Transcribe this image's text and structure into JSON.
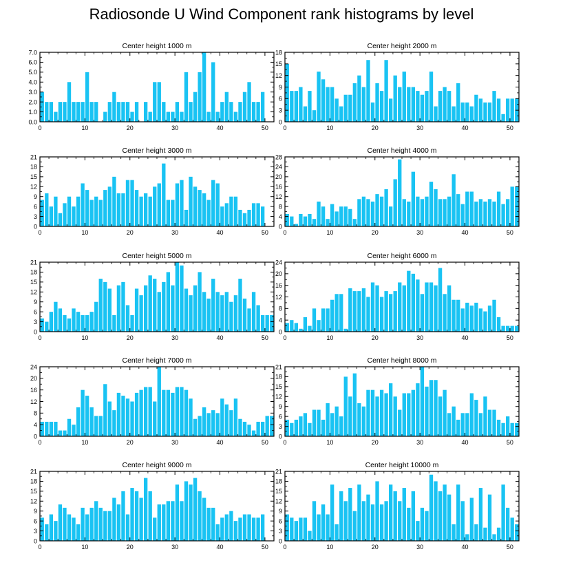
{
  "figure": {
    "title": "Radiosonde U Wind Component rank histograms by level",
    "bar_color": "#19c3f3",
    "axis_color": "#000000"
  },
  "chart_data": [
    {
      "type": "bar",
      "title": "Center height 1000 m",
      "xlabel": "",
      "ylabel": "",
      "xlim": [
        0,
        52
      ],
      "ylim": [
        0,
        7
      ],
      "yticks": [
        "0.0",
        "1.0",
        "2.0",
        "3.0",
        "4.0",
        "5.0",
        "6.0",
        "7.0"
      ],
      "ytick_values": [
        0,
        1,
        2,
        3,
        4,
        5,
        6,
        7
      ],
      "xticks": [
        0,
        10,
        20,
        30,
        40,
        50
      ],
      "x": [
        0,
        1,
        2,
        3,
        4,
        5,
        6,
        7,
        8,
        9,
        10,
        11,
        12,
        13,
        14,
        15,
        16,
        17,
        18,
        19,
        20,
        21,
        22,
        23,
        24,
        25,
        26,
        27,
        28,
        29,
        30,
        31,
        32,
        33,
        34,
        35,
        36,
        37,
        38,
        39,
        40,
        41,
        42,
        43,
        44,
        45,
        46,
        47,
        48,
        49,
        50,
        51
      ],
      "values": [
        3,
        2,
        2,
        1,
        2,
        2,
        4,
        2,
        2,
        2,
        5,
        2,
        2,
        0,
        1,
        2,
        3,
        2,
        2,
        2,
        1,
        2,
        0,
        2,
        1,
        4,
        4,
        2,
        1,
        1,
        2,
        1,
        5,
        2,
        3,
        5,
        7,
        1,
        6,
        1,
        2,
        3,
        2,
        1,
        2,
        3,
        4,
        2,
        2,
        3,
        0,
        0
      ]
    },
    {
      "type": "bar",
      "title": "Center height 2000 m",
      "xlabel": "",
      "ylabel": "",
      "xlim": [
        0,
        52
      ],
      "ylim": [
        0,
        18
      ],
      "yticks": [
        "0",
        "3",
        "6",
        "9",
        "12",
        "15",
        "18"
      ],
      "ytick_values": [
        0,
        3,
        6,
        9,
        12,
        15,
        18
      ],
      "xticks": [
        0,
        10,
        20,
        30,
        40,
        50
      ],
      "x": [
        0,
        1,
        2,
        3,
        4,
        5,
        6,
        7,
        8,
        9,
        10,
        11,
        12,
        13,
        14,
        15,
        16,
        17,
        18,
        19,
        20,
        21,
        22,
        23,
        24,
        25,
        26,
        27,
        28,
        29,
        30,
        31,
        32,
        33,
        34,
        35,
        36,
        37,
        38,
        39,
        40,
        41,
        42,
        43,
        44,
        45,
        46,
        47,
        48,
        49,
        50,
        51
      ],
      "values": [
        15,
        8,
        8,
        9,
        4,
        8,
        3,
        13,
        11,
        9,
        9,
        6,
        4,
        7,
        7,
        10,
        12,
        9,
        16,
        5,
        10,
        8,
        16,
        6,
        12,
        9,
        13,
        9,
        9,
        8,
        7,
        8,
        13,
        4,
        8,
        9,
        8,
        4,
        10,
        5,
        5,
        4,
        7,
        6,
        5,
        5,
        8,
        6,
        2,
        6,
        6,
        6
      ]
    },
    {
      "type": "bar",
      "title": "Center height 3000 m",
      "xlabel": "",
      "ylabel": "",
      "xlim": [
        0,
        52
      ],
      "ylim": [
        0,
        21
      ],
      "yticks": [
        "0",
        "3",
        "6",
        "9",
        "12",
        "15",
        "18",
        "21"
      ],
      "ytick_values": [
        0,
        3,
        6,
        9,
        12,
        15,
        18,
        21
      ],
      "xticks": [
        0,
        10,
        20,
        30,
        40,
        50
      ],
      "x": [
        0,
        1,
        2,
        3,
        4,
        5,
        6,
        7,
        8,
        9,
        10,
        11,
        12,
        13,
        14,
        15,
        16,
        17,
        18,
        19,
        20,
        21,
        22,
        23,
        24,
        25,
        26,
        27,
        28,
        29,
        30,
        31,
        32,
        33,
        34,
        35,
        36,
        37,
        38,
        39,
        40,
        41,
        42,
        43,
        44,
        45,
        46,
        47,
        48,
        49,
        50,
        51
      ],
      "values": [
        8,
        10,
        6,
        9,
        4,
        7,
        9,
        6,
        9,
        13,
        11,
        8,
        9,
        8,
        11,
        12,
        15,
        10,
        10,
        14,
        14,
        11,
        9,
        10,
        9,
        12,
        13,
        19,
        8,
        8,
        13,
        14,
        5,
        15,
        12,
        11,
        10,
        8,
        14,
        13,
        6,
        7,
        9,
        9,
        5,
        4,
        5,
        7,
        7,
        6,
        0,
        0
      ]
    },
    {
      "type": "bar",
      "title": "Center height 4000 m",
      "xlabel": "",
      "ylabel": "",
      "xlim": [
        0,
        52
      ],
      "ylim": [
        0,
        28
      ],
      "yticks": [
        "0",
        "4",
        "8",
        "12",
        "16",
        "20",
        "24",
        "28"
      ],
      "ytick_values": [
        0,
        4,
        8,
        12,
        16,
        20,
        24,
        28
      ],
      "xticks": [
        0,
        10,
        20,
        30,
        40,
        50
      ],
      "x": [
        0,
        1,
        2,
        3,
        4,
        5,
        6,
        7,
        8,
        9,
        10,
        11,
        12,
        13,
        14,
        15,
        16,
        17,
        18,
        19,
        20,
        21,
        22,
        23,
        24,
        25,
        26,
        27,
        28,
        29,
        30,
        31,
        32,
        33,
        34,
        35,
        36,
        37,
        38,
        39,
        40,
        41,
        42,
        43,
        44,
        45,
        46,
        47,
        48,
        49,
        50,
        51
      ],
      "values": [
        5,
        4,
        1,
        5,
        4,
        5,
        3,
        10,
        8,
        3,
        9,
        6,
        8,
        8,
        7,
        3,
        11,
        12,
        11,
        10,
        13,
        12,
        15,
        8,
        19,
        27,
        11,
        10,
        22,
        12,
        11,
        12,
        18,
        15,
        11,
        11,
        12,
        21,
        13,
        9,
        14,
        14,
        10,
        11,
        10,
        11,
        10,
        14,
        9,
        11,
        16,
        16
      ]
    },
    {
      "type": "bar",
      "title": "Center height 5000 m",
      "xlabel": "",
      "ylabel": "",
      "xlim": [
        0,
        52
      ],
      "ylim": [
        0,
        21
      ],
      "yticks": [
        "0",
        "3",
        "6",
        "9",
        "12",
        "15",
        "18",
        "21"
      ],
      "ytick_values": [
        0,
        3,
        6,
        9,
        12,
        15,
        18,
        21
      ],
      "xticks": [
        0,
        10,
        20,
        30,
        40,
        50
      ],
      "x": [
        0,
        1,
        2,
        3,
        4,
        5,
        6,
        7,
        8,
        9,
        10,
        11,
        12,
        13,
        14,
        15,
        16,
        17,
        18,
        19,
        20,
        21,
        22,
        23,
        24,
        25,
        26,
        27,
        28,
        29,
        30,
        31,
        32,
        33,
        34,
        35,
        36,
        37,
        38,
        39,
        40,
        41,
        42,
        43,
        44,
        45,
        46,
        47,
        48,
        49,
        50,
        51
      ],
      "values": [
        4,
        3,
        6,
        9,
        7,
        5,
        4,
        7,
        6,
        5,
        5,
        6,
        9,
        16,
        15,
        13,
        5,
        14,
        15,
        8,
        5,
        13,
        11,
        14,
        17,
        16,
        12,
        15,
        18,
        14,
        21,
        20,
        13,
        11,
        14,
        18,
        12,
        10,
        16,
        12,
        11,
        12,
        9,
        11,
        16,
        10,
        7,
        12,
        8,
        5,
        5,
        5
      ]
    },
    {
      "type": "bar",
      "title": "Center height 6000 m",
      "xlabel": "",
      "ylabel": "",
      "xlim": [
        0,
        52
      ],
      "ylim": [
        0,
        24
      ],
      "yticks": [
        "0",
        "4",
        "8",
        "12",
        "16",
        "20",
        "24"
      ],
      "ytick_values": [
        0,
        4,
        8,
        12,
        16,
        20,
        24
      ],
      "xticks": [
        0,
        10,
        20,
        30,
        40,
        50
      ],
      "x": [
        0,
        1,
        2,
        3,
        4,
        5,
        6,
        7,
        8,
        9,
        10,
        11,
        12,
        13,
        14,
        15,
        16,
        17,
        18,
        19,
        20,
        21,
        22,
        23,
        24,
        25,
        26,
        27,
        28,
        29,
        30,
        31,
        32,
        33,
        34,
        35,
        36,
        37,
        38,
        39,
        40,
        41,
        42,
        43,
        44,
        45,
        46,
        47,
        48,
        49,
        50,
        51
      ],
      "values": [
        3,
        4,
        3,
        1,
        5,
        2,
        8,
        4,
        8,
        8,
        11,
        13,
        13,
        1,
        15,
        14,
        14,
        15,
        12,
        17,
        16,
        12,
        14,
        13,
        14,
        17,
        16,
        21,
        20,
        18,
        13,
        17,
        17,
        16,
        22,
        13,
        16,
        11,
        11,
        8,
        10,
        9,
        10,
        8,
        7,
        9,
        11,
        5,
        2,
        2,
        2,
        2
      ]
    },
    {
      "type": "bar",
      "title": "Center height 7000 m",
      "xlabel": "",
      "ylabel": "",
      "xlim": [
        0,
        52
      ],
      "ylim": [
        0,
        24
      ],
      "yticks": [
        "0",
        "4",
        "8",
        "12",
        "16",
        "20",
        "24"
      ],
      "ytick_values": [
        0,
        4,
        8,
        12,
        16,
        20,
        24
      ],
      "xticks": [
        0,
        10,
        20,
        30,
        40,
        50
      ],
      "x": [
        0,
        1,
        2,
        3,
        4,
        5,
        6,
        7,
        8,
        9,
        10,
        11,
        12,
        13,
        14,
        15,
        16,
        17,
        18,
        19,
        20,
        21,
        22,
        23,
        24,
        25,
        26,
        27,
        28,
        29,
        30,
        31,
        32,
        33,
        34,
        35,
        36,
        37,
        38,
        39,
        40,
        41,
        42,
        43,
        44,
        45,
        46,
        47,
        48,
        49,
        50,
        51
      ],
      "values": [
        5,
        5,
        5,
        5,
        2,
        2,
        6,
        4,
        10,
        16,
        14,
        10,
        7,
        7,
        18,
        12,
        9,
        15,
        14,
        13,
        12,
        15,
        16,
        17,
        17,
        12,
        24,
        16,
        16,
        15,
        17,
        17,
        16,
        13,
        6,
        7,
        10,
        8,
        9,
        8,
        13,
        11,
        9,
        13,
        6,
        5,
        4,
        2,
        5,
        5,
        7,
        7
      ]
    },
    {
      "type": "bar",
      "title": "Center height 8000 m",
      "xlabel": "",
      "ylabel": "",
      "xlim": [
        0,
        52
      ],
      "ylim": [
        0,
        21
      ],
      "yticks": [
        "0",
        "3",
        "6",
        "9",
        "12",
        "15",
        "18",
        "21"
      ],
      "ytick_values": [
        0,
        3,
        6,
        9,
        12,
        15,
        18,
        21
      ],
      "xticks": [
        0,
        10,
        20,
        30,
        40,
        50
      ],
      "x": [
        0,
        1,
        2,
        3,
        4,
        5,
        6,
        7,
        8,
        9,
        10,
        11,
        12,
        13,
        14,
        15,
        16,
        17,
        18,
        19,
        20,
        21,
        22,
        23,
        24,
        25,
        26,
        27,
        28,
        29,
        30,
        31,
        32,
        33,
        34,
        35,
        36,
        37,
        38,
        39,
        40,
        41,
        42,
        43,
        44,
        45,
        46,
        47,
        48,
        49,
        50,
        51
      ],
      "values": [
        5,
        4,
        5,
        6,
        7,
        4,
        8,
        8,
        5,
        10,
        7,
        9,
        6,
        18,
        12,
        19,
        10,
        9,
        14,
        14,
        12,
        14,
        13,
        16,
        12,
        8,
        13,
        13,
        14,
        16,
        21,
        15,
        17,
        17,
        12,
        14,
        7,
        9,
        5,
        7,
        7,
        13,
        11,
        7,
        12,
        8,
        8,
        5,
        4,
        6,
        4,
        4
      ]
    },
    {
      "type": "bar",
      "title": "Center height 9000 m",
      "xlabel": "",
      "ylabel": "",
      "xlim": [
        0,
        52
      ],
      "ylim": [
        0,
        21
      ],
      "yticks": [
        "0",
        "3",
        "6",
        "9",
        "12",
        "15",
        "18",
        "21"
      ],
      "ytick_values": [
        0,
        3,
        6,
        9,
        12,
        15,
        18,
        21
      ],
      "xticks": [
        0,
        10,
        20,
        30,
        40,
        50
      ],
      "x": [
        0,
        1,
        2,
        3,
        4,
        5,
        6,
        7,
        8,
        9,
        10,
        11,
        12,
        13,
        14,
        15,
        16,
        17,
        18,
        19,
        20,
        21,
        22,
        23,
        24,
        25,
        26,
        27,
        28,
        29,
        30,
        31,
        32,
        33,
        34,
        35,
        36,
        37,
        38,
        39,
        40,
        41,
        42,
        43,
        44,
        45,
        46,
        47,
        48,
        49,
        50,
        51
      ],
      "values": [
        7,
        5,
        8,
        6,
        11,
        10,
        8,
        7,
        5,
        10,
        8,
        10,
        12,
        10,
        9,
        9,
        13,
        11,
        15,
        8,
        16,
        15,
        13,
        19,
        15,
        7,
        11,
        11,
        12,
        12,
        17,
        12,
        18,
        17,
        19,
        15,
        13,
        10,
        10,
        5,
        7,
        8,
        9,
        6,
        7,
        8,
        8,
        7,
        7,
        8,
        0,
        0
      ]
    },
    {
      "type": "bar",
      "title": "Center height 10000 m",
      "xlabel": "",
      "ylabel": "",
      "xlim": [
        0,
        52
      ],
      "ylim": [
        0,
        21
      ],
      "yticks": [
        "0",
        "3",
        "6",
        "9",
        "12",
        "15",
        "18",
        "21"
      ],
      "ytick_values": [
        0,
        3,
        6,
        9,
        12,
        15,
        18,
        21
      ],
      "xticks": [
        0,
        10,
        20,
        30,
        40,
        50
      ],
      "x": [
        0,
        1,
        2,
        3,
        4,
        5,
        6,
        7,
        8,
        9,
        10,
        11,
        12,
        13,
        14,
        15,
        16,
        17,
        18,
        19,
        20,
        21,
        22,
        23,
        24,
        25,
        26,
        27,
        28,
        29,
        30,
        31,
        32,
        33,
        34,
        35,
        36,
        37,
        38,
        39,
        40,
        41,
        42,
        43,
        44,
        45,
        46,
        47,
        48,
        49,
        50,
        51
      ],
      "values": [
        8,
        7,
        6,
        7,
        7,
        3,
        12,
        8,
        11,
        8,
        17,
        5,
        15,
        12,
        16,
        9,
        17,
        12,
        14,
        11,
        18,
        11,
        12,
        17,
        15,
        12,
        16,
        10,
        15,
        6,
        10,
        9,
        20,
        18,
        15,
        17,
        14,
        5,
        17,
        12,
        2,
        13,
        5,
        16,
        4,
        14,
        2,
        4,
        17,
        10,
        7,
        5
      ]
    }
  ]
}
